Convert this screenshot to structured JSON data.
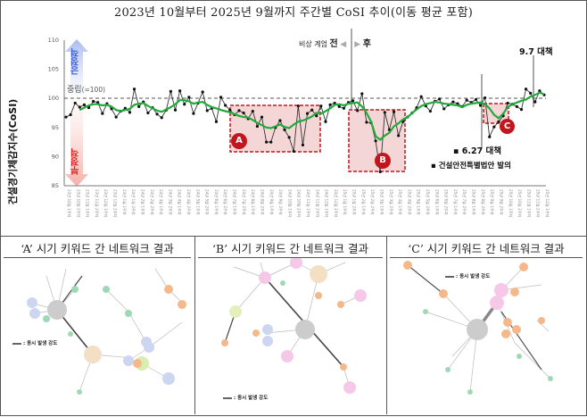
{
  "title": "2023년 10월부터 2025년 9월까지 주간별 CoSI 추이(이동 평균 포함)",
  "chart_data": {
    "type": "line",
    "title": "2023년 10월부터 2025년 9월까지 주간별 CoSI 추이(이동 평균 포함)",
    "xlabel": "",
    "ylabel": "건설경기체감지수(CoSI)",
    "ylim": [
      85,
      110
    ],
    "yticks": [
      85,
      90,
      95,
      100,
      105,
      110
    ],
    "x_range": "23년 10월 1주차 – 25년 9월",
    "x_tick_format": "YY년 M월 N주차",
    "grid": false,
    "reference_line": {
      "value": 100,
      "label": "중립(=100)",
      "style": "dashed"
    },
    "series": [
      {
        "name": "주간 CoSI",
        "color": "#222222",
        "values": [
          96.8,
          97.2,
          99.2,
          98.5,
          98.9,
          98.4,
          99.5,
          99.3,
          97.4,
          99.1,
          98.2,
          96.8,
          97.8,
          98.3,
          97.6,
          101.6,
          98.6,
          99.4,
          97.5,
          98.4,
          97.3,
          96.7,
          98.0,
          101.2,
          98.0,
          101.3,
          99.0,
          100.2,
          97.4,
          99.2,
          101.1,
          97.9,
          98.3,
          96.0,
          100.2,
          98.8,
          98.0,
          97.2,
          97.9,
          97.5,
          96.5,
          97.8,
          95.2,
          96.8,
          92.5,
          92.5,
          95.0,
          96.2,
          94.6,
          93.3,
          90.9,
          98.7,
          92.0,
          97.4,
          98.0,
          97.0,
          98.7,
          96.0,
          98.9,
          99.2,
          98.6,
          98.3,
          99.3,
          99.6,
          97.9,
          100.8,
          95.9,
          95.8,
          92.7,
          87.4,
          97.6,
          94.6,
          97.7,
          93.6,
          96.0,
          96.8,
          97.5,
          98.4,
          100.3,
          98.7,
          97.8,
          99.5,
          99.9,
          98.2,
          98.9,
          99.4,
          99.1,
          98.6,
          99.7,
          99.3,
          99.8,
          98.8,
          100.1,
          93.4,
          95.1,
          96.0,
          97.0,
          99.2,
          99.0,
          98.6,
          98.1,
          101.6,
          100.9,
          99.4,
          101.3,
          100.6
        ]
      },
      {
        "name": "이동 평균",
        "color": "#1faa3a",
        "values": [
          null,
          null,
          null,
          98.0,
          98.4,
          98.8,
          99.0,
          99.0,
          98.8,
          98.9,
          98.6,
          98.0,
          97.8,
          98.0,
          98.2,
          98.9,
          99.1,
          99.2,
          98.7,
          98.3,
          97.9,
          97.7,
          98.1,
          98.5,
          99.0,
          99.7,
          99.7,
          99.5,
          99.1,
          99.3,
          99.4,
          98.9,
          98.5,
          98.3,
          98.0,
          97.8,
          97.6,
          97.3,
          97.0,
          96.8,
          96.7,
          96.3,
          95.8,
          95.4,
          95.0,
          94.9,
          95.2,
          95.5,
          95.1,
          94.9,
          95.5,
          96.0,
          96.2,
          96.5,
          96.9,
          97.5,
          97.4,
          97.8,
          98.3,
          98.9,
          99.0,
          98.8,
          99.1,
          99.2,
          99.3,
          98.6,
          97.5,
          96.0,
          93.5,
          92.9,
          93.6,
          94.1,
          95.2,
          95.7,
          96.4,
          96.8,
          97.5,
          98.1,
          98.7,
          99.0,
          99.2,
          99.4,
          99.3,
          99.1,
          99.0,
          98.9,
          98.8,
          98.5,
          98.9,
          99.1,
          99.2,
          99.3,
          99.0,
          98.3,
          97.2,
          96.6,
          97.4,
          98.5,
          99.0,
          99.3,
          99.6,
          99.8,
          100.3,
          100.6,
          101.0,
          100.7
        ]
      }
    ],
    "highlight_regions": [
      {
        "label": "A",
        "color": "#c0161d"
      },
      {
        "label": "B",
        "color": "#c0161d"
      },
      {
        "label": "C",
        "color": "#c0161d"
      }
    ],
    "annotations": [
      "비상 계엄 전",
      "후",
      "6.27 대책",
      "건설안전특별법안 발의",
      "9.7 대책",
      "긍정적",
      "부정적",
      "중립(=100)"
    ]
  },
  "chart": {
    "ylabel": "건설경기체감지수(CoSI)",
    "yticks": [
      "110",
      "105",
      "100",
      "95",
      "90",
      "85"
    ],
    "neutral_label": "중립",
    "neutral_value": "(=100)",
    "positive_label": "긍정적",
    "negative_label": "부정적",
    "martial_before": "비상 계엄",
    "martial_before_bold": "전",
    "martial_after": "후",
    "policy_627": "6.27 대책",
    "safety_bill": "건설안전특별법안 발의",
    "policy_97": "9.7 대책",
    "region_a": "A",
    "region_b": "B",
    "region_c": "C",
    "colors": {
      "raw": "#222222",
      "ma": "#1faa3a",
      "highlight": "#c0161d",
      "highlight_fill": "#f4d6d6",
      "positive": "#3b5fd6",
      "negative": "#e02020"
    }
  },
  "panels": [
    {
      "title": "‘A’ 시기 키워드 간 네트워크 결과",
      "legend": ": 동시 발생 강도"
    },
    {
      "title": "‘B’ 시기 키워드 간 네트워크 결과",
      "legend": ": 동시 발생 강도"
    },
    {
      "title": "‘C’ 시기 키워드 간 네트워크 결과",
      "legend": ": 동시 발생 강도"
    }
  ]
}
